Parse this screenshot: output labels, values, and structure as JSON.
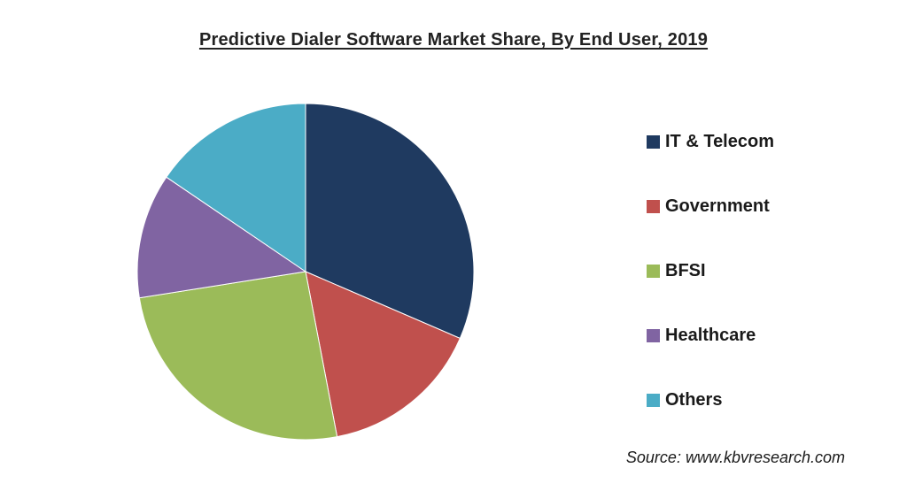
{
  "chart_data": {
    "type": "pie",
    "title": "Predictive Dialer Software Market Share, By End User, 2019",
    "legend_position": "right",
    "categories": [
      "IT & Telecom",
      "Government",
      "BFSI",
      "Healthcare",
      "Others"
    ],
    "values": [
      31.5,
      15.5,
      25.5,
      12.0,
      15.5
    ],
    "colors": [
      "#1f3a60",
      "#c0504d",
      "#9bbb59",
      "#8064a2",
      "#4bacc6"
    ]
  },
  "source_text": "Source: www.kbvresearch.com"
}
